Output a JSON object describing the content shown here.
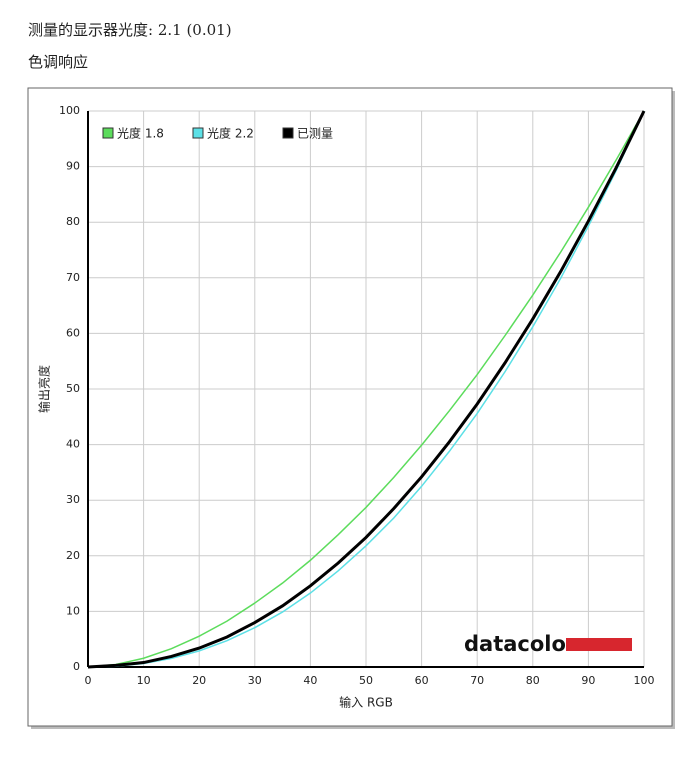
{
  "header": {
    "title": "测量的显示器光度: 2.1 (0.01)",
    "subtitle": "色调响应"
  },
  "chart_data": {
    "type": "line",
    "xlabel": "输入 RGB",
    "ylabel": "输出亮度",
    "logo": "datacolor",
    "x": [
      0,
      5,
      10,
      15,
      20,
      25,
      30,
      35,
      40,
      45,
      50,
      55,
      60,
      65,
      70,
      75,
      80,
      85,
      90,
      95,
      100
    ],
    "series": [
      {
        "name": "光度 1.8",
        "color": "#5cdc5c",
        "width": 1.5,
        "values": [
          0,
          0.45,
          1.58,
          3.29,
          5.55,
          8.25,
          11.5,
          15.1,
          19.2,
          23.8,
          28.7,
          34.1,
          39.9,
          46.1,
          52.6,
          59.6,
          66.9,
          74.6,
          82.7,
          91.2,
          100
        ]
      },
      {
        "name": "光度 2.2",
        "color": "#5ce0e6",
        "width": 1.5,
        "values": [
          0,
          0.14,
          0.63,
          1.54,
          2.9,
          4.74,
          7.07,
          9.9,
          13.3,
          17.3,
          21.8,
          26.8,
          32.5,
          38.8,
          45.6,
          53.1,
          61.2,
          69.9,
          79.3,
          89.3,
          100
        ]
      },
      {
        "name": "已测量",
        "color": "#000000",
        "width": 3,
        "values": [
          0,
          0.3,
          0.8,
          1.9,
          3.4,
          5.4,
          8.0,
          11.0,
          14.6,
          18.7,
          23.3,
          28.5,
          34.2,
          40.5,
          47.3,
          54.7,
          62.6,
          71.1,
          80.2,
          89.8,
          100
        ]
      }
    ],
    "xlim": [
      0,
      100
    ],
    "ylim": [
      0,
      100
    ],
    "xticks": [
      0,
      10,
      20,
      30,
      40,
      50,
      60,
      70,
      80,
      90,
      100
    ],
    "yticks": [
      0,
      10,
      20,
      30,
      40,
      50,
      60,
      70,
      80,
      90,
      100
    ],
    "grid": true,
    "legend": "top-left"
  }
}
